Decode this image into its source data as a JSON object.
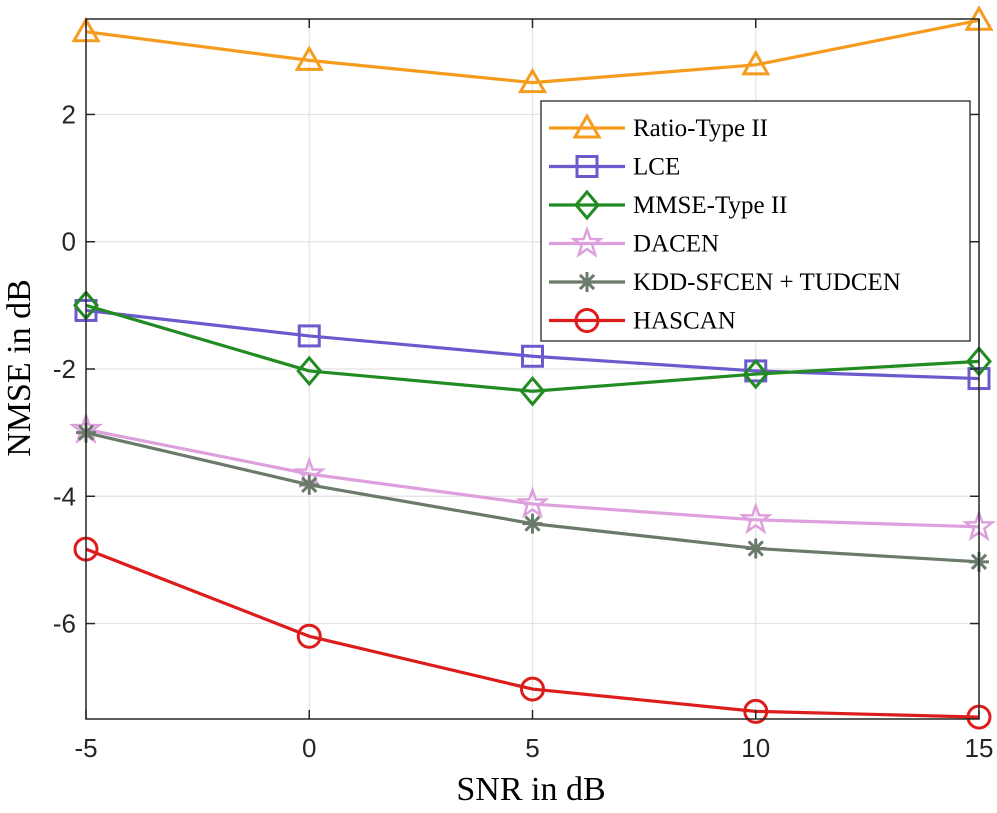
{
  "chart_data": {
    "type": "line",
    "title": "",
    "xlabel": "SNR in dB",
    "ylabel": "NMSE in dB",
    "x": [
      -5,
      0,
      5,
      10,
      15
    ],
    "xticks": [
      "-5",
      "0",
      "5",
      "10",
      "15"
    ],
    "yticks": [
      "-6",
      "-4",
      "-2",
      "0",
      "2"
    ],
    "xlim": [
      -5,
      15
    ],
    "ylim": [
      -7.5,
      3.5
    ],
    "grid": true,
    "legend_position": "top-right",
    "series": [
      {
        "name": "Ratio-Type II",
        "values": [
          3.3,
          2.85,
          2.5,
          2.78,
          3.48
        ],
        "color": "#f59c1f",
        "marker": "triangle"
      },
      {
        "name": "LCE",
        "values": [
          -1.08,
          -1.48,
          -1.8,
          -2.03,
          -2.15
        ],
        "color": "#6a5acd",
        "marker": "square"
      },
      {
        "name": "MMSE-Type II",
        "values": [
          -1.0,
          -2.03,
          -2.35,
          -2.08,
          -1.88
        ],
        "color": "#228b22",
        "marker": "diamond"
      },
      {
        "name": "DACEN",
        "values": [
          -2.95,
          -3.65,
          -4.12,
          -4.37,
          -4.48
        ],
        "color": "#dda0dd",
        "marker": "star"
      },
      {
        "name": "KDD-SFCEN + TUDCEN",
        "values": [
          -3.0,
          -3.82,
          -4.43,
          -4.82,
          -5.03
        ],
        "color": "#6b7b6b",
        "marker": "asterisk"
      },
      {
        "name": "HASCAN",
        "values": [
          -4.83,
          -6.2,
          -7.03,
          -7.38,
          -7.47
        ],
        "color": "#dd1c1c",
        "marker": "circle"
      }
    ]
  }
}
